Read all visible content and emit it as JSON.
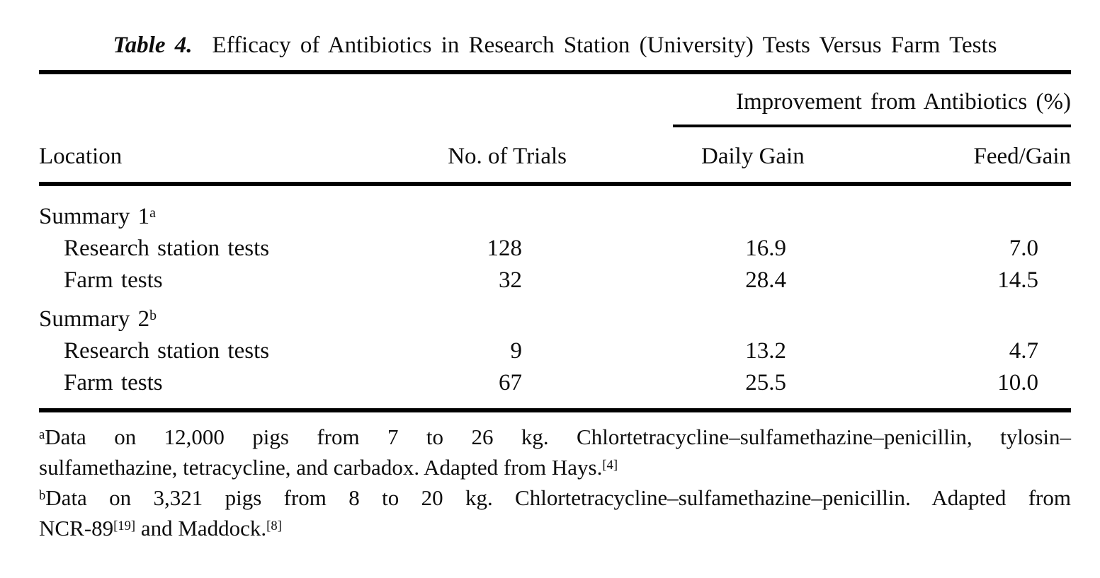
{
  "caption": {
    "label": "Table 4.",
    "text": "Efficacy of Antibiotics in Research Station (University) Tests Versus Farm Tests"
  },
  "table": {
    "group_header": "Improvement from Antibiotics (%)",
    "columns": [
      "Location",
      "No. of Trials",
      "Daily Gain",
      "Feed/Gain"
    ],
    "rows": [
      {
        "type": "group",
        "label": "Summary 1",
        "sup": "a"
      },
      {
        "type": "data",
        "label": "Research station tests",
        "trials": "128",
        "daily_gain": "16.9",
        "feed_gain": "7.0"
      },
      {
        "type": "data",
        "label": "Farm tests",
        "trials": "32",
        "daily_gain": "28.4",
        "feed_gain": "14.5"
      },
      {
        "type": "group",
        "label": "Summary 2",
        "sup": "b"
      },
      {
        "type": "data",
        "label": "Research station tests",
        "trials": "9",
        "daily_gain": "13.2",
        "feed_gain": "4.7"
      },
      {
        "type": "data",
        "label": "Farm tests",
        "trials": "67",
        "daily_gain": "25.5",
        "feed_gain": "10.0"
      }
    ]
  },
  "footnotes": {
    "lines": [
      {
        "justify": true,
        "tokens": [
          {
            "sup": "a"
          },
          {
            "txt": "Data on 12,000 pigs from 7 to 26 kg. Chlortetracycline–sulfamethazine–penicillin, tylosin–"
          }
        ]
      },
      {
        "justify": false,
        "tokens": [
          {
            "txt": "sulfamethazine, tetracycline, and carbadox. Adapted from Hays."
          },
          {
            "sup": "[4]"
          }
        ]
      },
      {
        "justify": true,
        "tokens": [
          {
            "sup": "b"
          },
          {
            "txt": "Data on 3,321 pigs from 8 to 20 kg. Chlortetracycline–sulfamethazine–penicillin. Adapted from"
          }
        ]
      },
      {
        "justify": false,
        "tokens": [
          {
            "txt": "NCR-89"
          },
          {
            "sup": "[19]"
          },
          {
            "txt": " and Maddock."
          },
          {
            "sup": "[8]"
          }
        ]
      }
    ]
  },
  "colors": {
    "text": "#0d0d0d",
    "rule": "#000000",
    "background": "#ffffff"
  }
}
